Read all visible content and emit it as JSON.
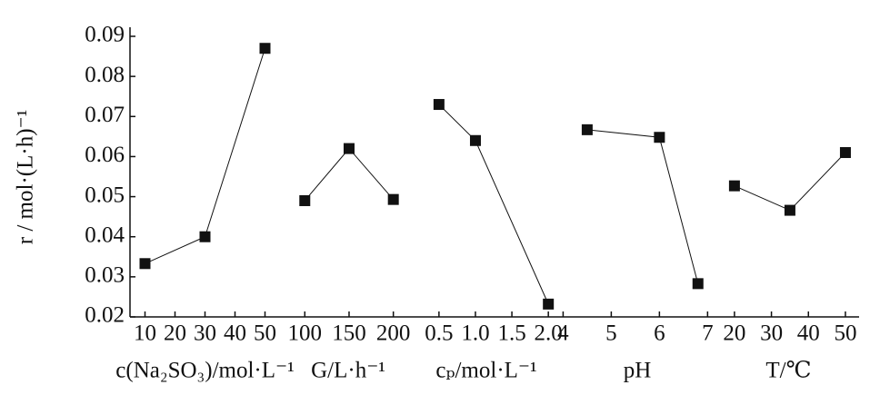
{
  "chart_data": {
    "type": "line",
    "y_label": "r / mol·(L·h)⁻¹",
    "color": "#111111",
    "ylim": [
      0.02,
      0.09
    ],
    "yticks": [
      0.02,
      0.03,
      0.04,
      0.05,
      0.06,
      0.07,
      0.08,
      0.09
    ],
    "panels": [
      {
        "x_label": "c(Na₂SO₃)/mol·L⁻¹",
        "xlim": [
          5,
          55
        ],
        "xticks": [
          10,
          20,
          30,
          40,
          50
        ],
        "x": [
          10,
          30,
          50
        ],
        "values": [
          0.0333,
          0.04,
          0.087
        ]
      },
      {
        "x_label": "G/L·h⁻¹",
        "xlim": [
          72,
          226
        ],
        "xticks": [
          100,
          150,
          200
        ],
        "x": [
          100,
          150,
          200
        ],
        "values": [
          0.049,
          0.062,
          0.0493
        ]
      },
      {
        "x_label": "cₚ/mol·L⁻¹",
        "xlim": [
          0.19,
          2.11
        ],
        "xticks": [
          0.5,
          {
            "value": 1,
            "label": "1.0"
          },
          1.5,
          {
            "value": 2,
            "label": "2.0"
          }
        ],
        "x": [
          0.5,
          1,
          2
        ],
        "values": [
          0.073,
          0.064,
          0.0232
        ]
      },
      {
        "x_label": "pH",
        "xlim": [
          3.86,
          7.22
        ],
        "xticks": [
          4,
          5,
          6,
          7
        ],
        "x": [
          4.5,
          6,
          6.8
        ],
        "values": [
          0.0667,
          0.0648,
          0.0283
        ]
      },
      {
        "x_label": "T/℃",
        "xlim": [
          15.6,
          53.7
        ],
        "xticks": [
          20,
          30,
          40,
          50
        ],
        "x": [
          20,
          35,
          50
        ],
        "values": [
          0.0527,
          0.0466,
          0.061
        ]
      }
    ]
  }
}
